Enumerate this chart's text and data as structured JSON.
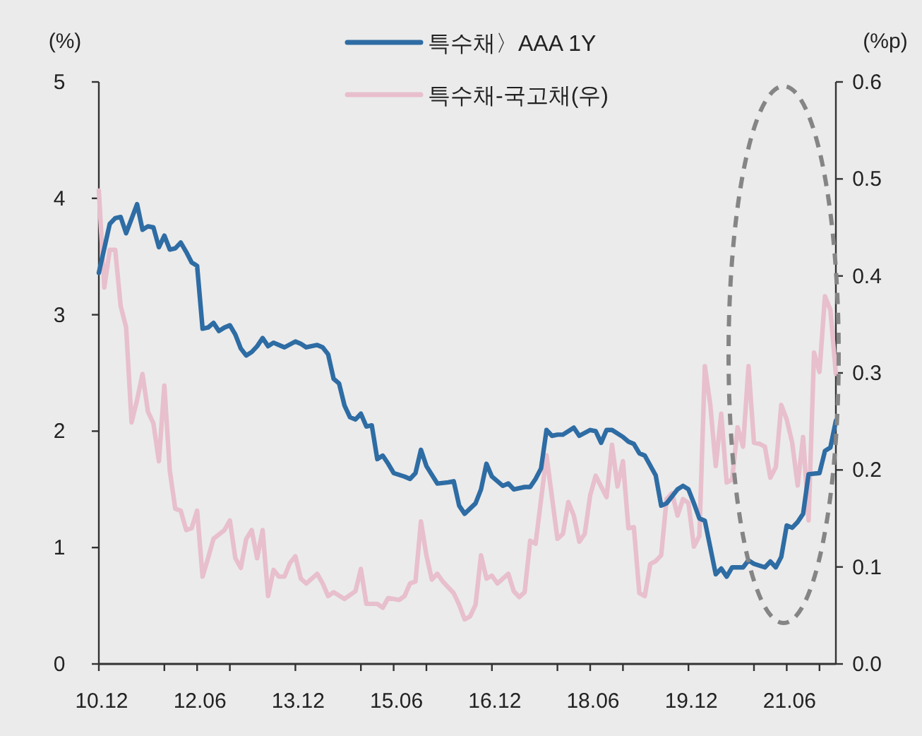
{
  "chart_data": {
    "type": "line",
    "ylabel": "(%)",
    "y2label": "(%p)",
    "xlim": [
      "2010-12",
      "2022-03"
    ],
    "xticks": [
      {
        "value": "2010-12",
        "label": "10.12"
      },
      {
        "value": "2011-12",
        "label": null
      },
      {
        "value": "2012-06",
        "label": "12.06"
      },
      {
        "value": "2012-12",
        "label": null
      },
      {
        "value": "2013-12",
        "label": "13.12"
      },
      {
        "value": "2014-12",
        "label": null
      },
      {
        "value": "2015-06",
        "label": "15.06"
      },
      {
        "value": "2015-12",
        "label": null
      },
      {
        "value": "2016-12",
        "label": "16.12"
      },
      {
        "value": "2017-12",
        "label": null
      },
      {
        "value": "2018-06",
        "label": "18.06"
      },
      {
        "value": "2018-12",
        "label": null
      },
      {
        "value": "2019-12",
        "label": "19.12"
      },
      {
        "value": "2020-12",
        "label": null
      },
      {
        "value": "2021-06",
        "label": "21.06"
      },
      {
        "value": "2021-12",
        "label": null
      }
    ],
    "ylim": [
      0,
      5
    ],
    "yticks": [
      0,
      1,
      2,
      3,
      4,
      5
    ],
    "y2lim": [
      0,
      0.6
    ],
    "y2ticks": [
      {
        "value": 0,
        "label": "0.0"
      },
      {
        "value": 0.1,
        "label": "0.1"
      },
      {
        "value": 0.2,
        "label": "0.2"
      },
      {
        "value": 0.3,
        "label": "0.3"
      },
      {
        "value": 0.4,
        "label": "0.4"
      },
      {
        "value": 0.5,
        "label": "0.5"
      },
      {
        "value": 0.6,
        "label": "0.6"
      }
    ],
    "legend": "top",
    "grid": false,
    "marker": "none",
    "line_style": "solid",
    "series": [
      {
        "name": "특수채〉AAA 1Y",
        "color": "#2e6ca4",
        "x": [
          "2010-12",
          "2011-02",
          "2011-03",
          "2011-04",
          "2011-05",
          "2011-07",
          "2011-08",
          "2011-09",
          "2011-10",
          "2011-11",
          "2011-12",
          "2012-01",
          "2012-02",
          "2012-03",
          "2012-04",
          "2012-05",
          "2012-06",
          "2012-07",
          "2012-08",
          "2012-09",
          "2012-10",
          "2012-11",
          "2012-12",
          "2013-01",
          "2013-02",
          "2013-03",
          "2013-04",
          "2013-05",
          "2013-06",
          "2013-07",
          "2013-08",
          "2013-09",
          "2013-10",
          "2013-12",
          "2014-01",
          "2014-02",
          "2014-04",
          "2014-05",
          "2014-06",
          "2014-07",
          "2014-08",
          "2014-09",
          "2014-10",
          "2014-11",
          "2014-12",
          "2015-01",
          "2015-02",
          "2015-03",
          "2015-04",
          "2015-05",
          "2015-06",
          "2015-08",
          "2015-09",
          "2015-10",
          "2015-11",
          "2015-12",
          "2016-02",
          "2016-04",
          "2016-05",
          "2016-06",
          "2016-07",
          "2016-09",
          "2016-10",
          "2016-11",
          "2016-12",
          "2017-02",
          "2017-03",
          "2017-04",
          "2017-06",
          "2017-07",
          "2017-08",
          "2017-09",
          "2017-10",
          "2017-11",
          "2017-12",
          "2018-01",
          "2018-03",
          "2018-04",
          "2018-06",
          "2018-07",
          "2018-08",
          "2018-09",
          "2018-10",
          "2018-12",
          "2019-01",
          "2019-02",
          "2019-03",
          "2019-04",
          "2019-06",
          "2019-07",
          "2019-08",
          "2019-10",
          "2019-11",
          "2019-12",
          "2020-01",
          "2020-02",
          "2020-03",
          "2020-05",
          "2020-06",
          "2020-07",
          "2020-08",
          "2020-10",
          "2020-11",
          "2020-12",
          "2021-02",
          "2021-03",
          "2021-04",
          "2021-05",
          "2021-06",
          "2021-07",
          "2021-08",
          "2021-09",
          "2021-10",
          "2021-12",
          "2022-01",
          "2022-02",
          "2022-03"
        ],
        "values": [
          3.36,
          3.78,
          3.83,
          3.84,
          3.7,
          3.95,
          3.73,
          3.76,
          3.75,
          3.58,
          3.68,
          3.56,
          3.57,
          3.62,
          3.54,
          3.45,
          3.42,
          2.88,
          2.89,
          2.93,
          2.86,
          2.89,
          2.91,
          2.83,
          2.71,
          2.65,
          2.68,
          2.73,
          2.8,
          2.73,
          2.76,
          2.74,
          2.72,
          2.77,
          2.75,
          2.72,
          2.74,
          2.72,
          2.66,
          2.45,
          2.41,
          2.22,
          2.12,
          2.1,
          2.15,
          2.04,
          2.05,
          1.76,
          1.79,
          1.72,
          1.64,
          1.61,
          1.59,
          1.64,
          1.84,
          1.7,
          1.55,
          1.56,
          1.57,
          1.36,
          1.29,
          1.38,
          1.5,
          1.72,
          1.61,
          1.53,
          1.55,
          1.5,
          1.52,
          1.52,
          1.59,
          1.68,
          2.01,
          1.96,
          1.97,
          1.97,
          2.03,
          1.96,
          2.01,
          2.0,
          1.9,
          2.01,
          2.01,
          1.95,
          1.91,
          1.89,
          1.81,
          1.79,
          1.62,
          1.36,
          1.38,
          1.5,
          1.53,
          1.5,
          1.38,
          1.25,
          1.23,
          0.77,
          0.82,
          0.75,
          0.83,
          0.83,
          0.89,
          0.86,
          0.83,
          0.88,
          0.83,
          0.92,
          1.19,
          1.17,
          1.22,
          1.29,
          1.63,
          1.64,
          1.83,
          1.86,
          2.09
        ]
      },
      {
        "name": "특수채-국고채(우)",
        "color": "#e8bfcc",
        "axis": "y2",
        "x": [
          "2010-12",
          "2011-01",
          "2011-02",
          "2011-03",
          "2011-04",
          "2011-05",
          "2011-06",
          "2011-07",
          "2011-08",
          "2011-09",
          "2011-10",
          "2011-11",
          "2011-12",
          "2012-01",
          "2012-02",
          "2012-03",
          "2012-04",
          "2012-05",
          "2012-06",
          "2012-07",
          "2012-08",
          "2012-09",
          "2012-11",
          "2012-12",
          "2013-01",
          "2013-02",
          "2013-03",
          "2013-04",
          "2013-05",
          "2013-06",
          "2013-07",
          "2013-08",
          "2013-09",
          "2013-10",
          "2013-11",
          "2013-12",
          "2014-01",
          "2014-02",
          "2014-04",
          "2014-05",
          "2014-06",
          "2014-07",
          "2014-09",
          "2014-11",
          "2014-12",
          "2015-01",
          "2015-03",
          "2015-04",
          "2015-05",
          "2015-07",
          "2015-08",
          "2015-09",
          "2015-10",
          "2015-11",
          "2015-12",
          "2016-01",
          "2016-02",
          "2016-03",
          "2016-05",
          "2016-06",
          "2016-07",
          "2016-08",
          "2016-09",
          "2016-10",
          "2016-11",
          "2016-12",
          "2017-01",
          "2017-03",
          "2017-04",
          "2017-05",
          "2017-06",
          "2017-07",
          "2017-08",
          "2017-10",
          "2017-11",
          "2017-12",
          "2018-01",
          "2018-02",
          "2018-03",
          "2018-04",
          "2018-05",
          "2018-06",
          "2018-07",
          "2018-08",
          "2018-09",
          "2018-10",
          "2018-11",
          "2018-12",
          "2019-01",
          "2019-02",
          "2019-03",
          "2019-04",
          "2019-05",
          "2019-06",
          "2019-07",
          "2019-08",
          "2019-09",
          "2019-10",
          "2019-11",
          "2019-12",
          "2020-01",
          "2020-02",
          "2020-03",
          "2020-04",
          "2020-05",
          "2020-06",
          "2020-07",
          "2020-08",
          "2020-09",
          "2020-10",
          "2020-11",
          "2020-12",
          "2021-01",
          "2021-02",
          "2021-03",
          "2021-04",
          "2021-05",
          "2021-06",
          "2021-07",
          "2021-08",
          "2021-09",
          "2021-10",
          "2021-11",
          "2021-12",
          "2022-01",
          "2022-02",
          "2022-03"
        ],
        "values": [
          0.488,
          0.388,
          0.427,
          0.427,
          0.369,
          0.347,
          0.249,
          0.272,
          0.299,
          0.26,
          0.248,
          0.209,
          0.287,
          0.199,
          0.16,
          0.158,
          0.138,
          0.14,
          0.158,
          0.09,
          0.109,
          0.129,
          0.138,
          0.148,
          0.109,
          0.099,
          0.129,
          0.138,
          0.109,
          0.138,
          0.07,
          0.097,
          0.09,
          0.09,
          0.104,
          0.111,
          0.088,
          0.083,
          0.093,
          0.083,
          0.07,
          0.074,
          0.067,
          0.075,
          0.098,
          0.062,
          0.062,
          0.058,
          0.068,
          0.066,
          0.07,
          0.083,
          0.085,
          0.147,
          0.112,
          0.087,
          0.093,
          0.085,
          0.073,
          0.061,
          0.046,
          0.049,
          0.061,
          0.112,
          0.088,
          0.091,
          0.083,
          0.093,
          0.075,
          0.069,
          0.074,
          0.127,
          0.124,
          0.215,
          0.172,
          0.129,
          0.134,
          0.167,
          0.153,
          0.126,
          0.134,
          0.174,
          0.194,
          0.183,
          0.172,
          0.226,
          0.183,
          0.209,
          0.14,
          0.141,
          0.073,
          0.07,
          0.103,
          0.106,
          0.112,
          0.17,
          0.176,
          0.153,
          0.17,
          0.166,
          0.121,
          0.132,
          0.307,
          0.267,
          0.204,
          0.258,
          0.187,
          0.19,
          0.244,
          0.224,
          0.307,
          0.228,
          0.227,
          0.224,
          0.192,
          0.203,
          0.267,
          0.252,
          0.228,
          0.184,
          0.234,
          0.148,
          0.321,
          0.301,
          0.379,
          0.365,
          0.299
        ]
      }
    ]
  }
}
